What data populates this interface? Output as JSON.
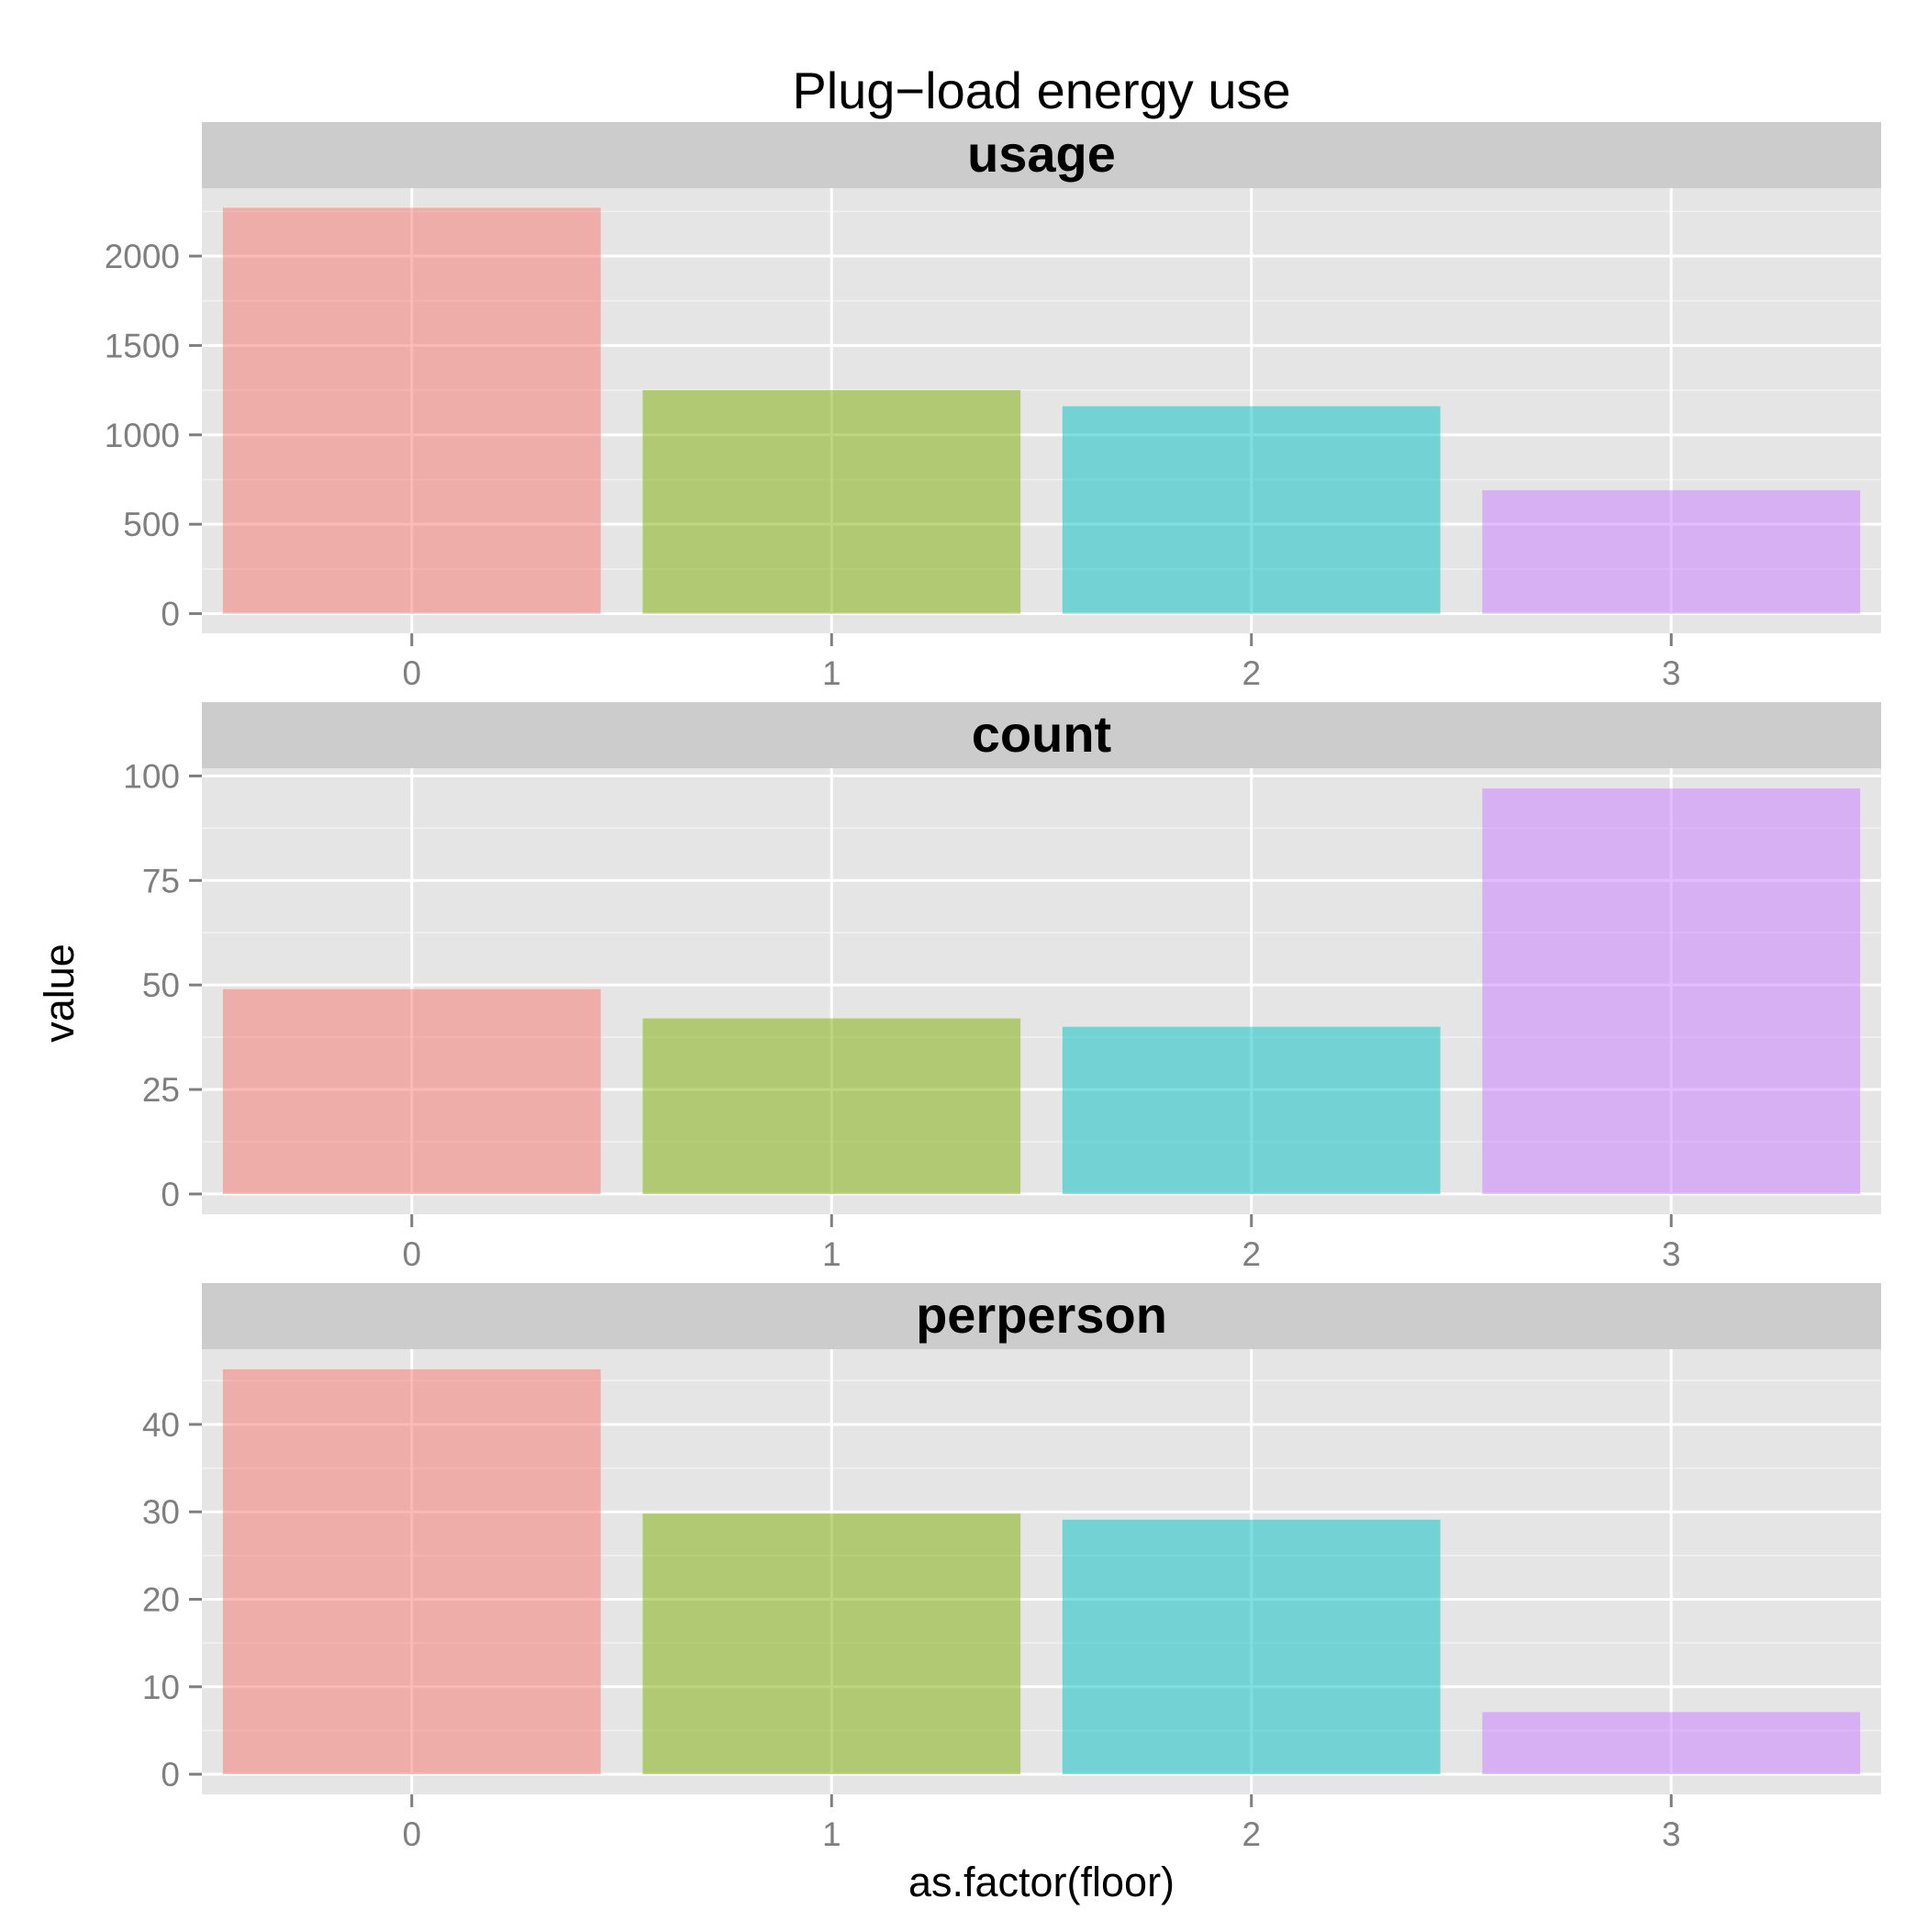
{
  "chart_data": {
    "type": "bar",
    "title": "Plug−load energy use",
    "xlabel": "as.factor(floor)",
    "ylabel": "value",
    "categories": [
      "0",
      "1",
      "2",
      "3"
    ],
    "colors": [
      "#F8766D",
      "#7CAE00",
      "#00BFC4",
      "#C77CFF"
    ],
    "bar_opacity": 0.5,
    "panel_background": "#E5E5E5",
    "strip_background": "#CCCCCC",
    "grid": true,
    "legend": "none",
    "facets": [
      {
        "label": "usage",
        "values": [
          2270,
          1250,
          1160,
          690
        ],
        "ylim": [
          -110,
          2380
        ],
        "yticks": [
          0,
          500,
          1000,
          1500,
          2000
        ],
        "ytick_labels": [
          "0",
          "500",
          "1000",
          "1500",
          "2000"
        ]
      },
      {
        "label": "count",
        "values": [
          49,
          42,
          40,
          97
        ],
        "ylim": [
          -4.85,
          101.85
        ],
        "yticks": [
          0,
          25,
          50,
          75,
          100
        ],
        "ytick_labels": [
          "0",
          "25",
          "50",
          "75",
          "100"
        ]
      },
      {
        "label": "perperson",
        "values": [
          46.3,
          29.8,
          29.1,
          7.1
        ],
        "ylim": [
          -2.3,
          48.6
        ],
        "yticks": [
          0,
          10,
          20,
          30,
          40
        ],
        "ytick_labels": [
          "0",
          "10",
          "20",
          "30",
          "40"
        ]
      }
    ]
  }
}
